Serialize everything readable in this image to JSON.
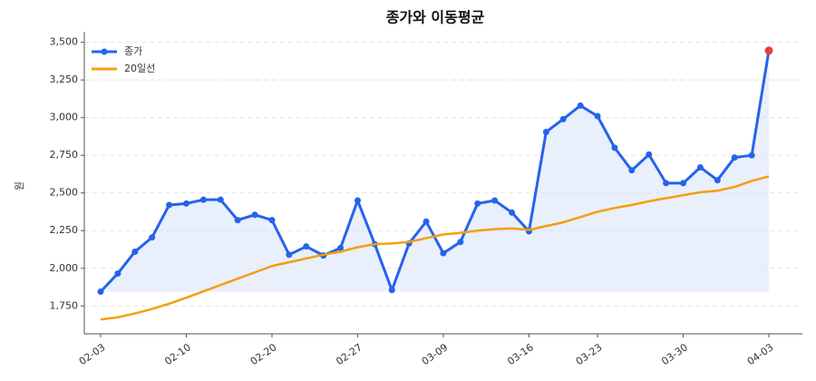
{
  "chart_data": {
    "type": "line",
    "title": "종가와 이동평균",
    "y_label": "원",
    "categories": [
      "02-03",
      null,
      null,
      null,
      null,
      "02-10",
      null,
      null,
      null,
      null,
      "02-20",
      null,
      null,
      null,
      null,
      "02-27",
      null,
      null,
      null,
      null,
      "03-09",
      null,
      null,
      null,
      null,
      "03-16",
      null,
      null,
      null,
      "03-23",
      null,
      null,
      null,
      null,
      "03-30",
      null,
      null,
      null,
      null,
      "04-03"
    ],
    "series": [
      {
        "name": "종가",
        "color": "#2563eb",
        "markers": true,
        "fill_color": "#dbe5f8",
        "values": [
          1845,
          1965,
          2110,
          2205,
          2420,
          2430,
          2455,
          2455,
          2320,
          2355,
          2320,
          2090,
          2145,
          2085,
          2135,
          2450,
          2160,
          1855,
          2165,
          2310,
          2100,
          2175,
          2430,
          2450,
          2370,
          2245,
          2905,
          2990,
          3080,
          3010,
          2800,
          2650,
          2755,
          2565,
          2565,
          2670,
          2585,
          2735,
          2750,
          3445
        ]
      },
      {
        "name": "20일선",
        "color": "#f59e0b",
        "markers": false,
        "values": [
          1660,
          1675,
          1700,
          1730,
          1765,
          1805,
          1847,
          1889,
          1931,
          1973,
          2015,
          2040,
          2065,
          2090,
          2110,
          2140,
          2160,
          2165,
          2175,
          2200,
          2225,
          2235,
          2250,
          2260,
          2265,
          2255,
          2280,
          2305,
          2340,
          2375,
          2400,
          2420,
          2445,
          2465,
          2485,
          2505,
          2515,
          2540,
          2580,
          2610
        ]
      }
    ],
    "highlight_color": "#e53e3e",
    "ylim": [
      1565,
      3570
    ],
    "yticks": [
      {
        "value": 1750,
        "label": "1,750"
      },
      {
        "value": 2000,
        "label": "2,000"
      },
      {
        "value": 2250,
        "label": "2,250"
      },
      {
        "value": 2500,
        "label": "2,500"
      },
      {
        "value": 2750,
        "label": "2,750"
      },
      {
        "value": 3000,
        "label": "3,000"
      },
      {
        "value": 3250,
        "label": "3,250"
      },
      {
        "value": 3500,
        "label": "3,500"
      }
    ],
    "grid": true,
    "legend": "upper left"
  }
}
